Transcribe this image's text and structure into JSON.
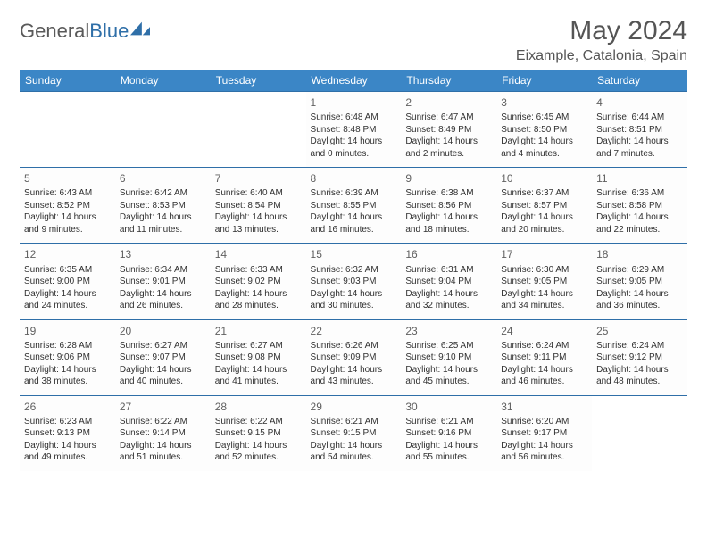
{
  "logo": {
    "text1": "General",
    "text2": "Blue"
  },
  "title": "May 2024",
  "location": "Eixample, Catalonia, Spain",
  "daysOfWeek": [
    "Sunday",
    "Monday",
    "Tuesday",
    "Wednesday",
    "Thursday",
    "Friday",
    "Saturday"
  ],
  "colors": {
    "header_bg": "#3b86c6",
    "border": "#2f6fa8",
    "text": "#303030",
    "title_text": "#555555"
  },
  "weeks": [
    [
      null,
      null,
      null,
      {
        "n": "1",
        "sr": "6:48 AM",
        "ss": "8:48 PM",
        "dl": "14 hours and 0 minutes."
      },
      {
        "n": "2",
        "sr": "6:47 AM",
        "ss": "8:49 PM",
        "dl": "14 hours and 2 minutes."
      },
      {
        "n": "3",
        "sr": "6:45 AM",
        "ss": "8:50 PM",
        "dl": "14 hours and 4 minutes."
      },
      {
        "n": "4",
        "sr": "6:44 AM",
        "ss": "8:51 PM",
        "dl": "14 hours and 7 minutes."
      }
    ],
    [
      {
        "n": "5",
        "sr": "6:43 AM",
        "ss": "8:52 PM",
        "dl": "14 hours and 9 minutes."
      },
      {
        "n": "6",
        "sr": "6:42 AM",
        "ss": "8:53 PM",
        "dl": "14 hours and 11 minutes."
      },
      {
        "n": "7",
        "sr": "6:40 AM",
        "ss": "8:54 PM",
        "dl": "14 hours and 13 minutes."
      },
      {
        "n": "8",
        "sr": "6:39 AM",
        "ss": "8:55 PM",
        "dl": "14 hours and 16 minutes."
      },
      {
        "n": "9",
        "sr": "6:38 AM",
        "ss": "8:56 PM",
        "dl": "14 hours and 18 minutes."
      },
      {
        "n": "10",
        "sr": "6:37 AM",
        "ss": "8:57 PM",
        "dl": "14 hours and 20 minutes."
      },
      {
        "n": "11",
        "sr": "6:36 AM",
        "ss": "8:58 PM",
        "dl": "14 hours and 22 minutes."
      }
    ],
    [
      {
        "n": "12",
        "sr": "6:35 AM",
        "ss": "9:00 PM",
        "dl": "14 hours and 24 minutes."
      },
      {
        "n": "13",
        "sr": "6:34 AM",
        "ss": "9:01 PM",
        "dl": "14 hours and 26 minutes."
      },
      {
        "n": "14",
        "sr": "6:33 AM",
        "ss": "9:02 PM",
        "dl": "14 hours and 28 minutes."
      },
      {
        "n": "15",
        "sr": "6:32 AM",
        "ss": "9:03 PM",
        "dl": "14 hours and 30 minutes."
      },
      {
        "n": "16",
        "sr": "6:31 AM",
        "ss": "9:04 PM",
        "dl": "14 hours and 32 minutes."
      },
      {
        "n": "17",
        "sr": "6:30 AM",
        "ss": "9:05 PM",
        "dl": "14 hours and 34 minutes."
      },
      {
        "n": "18",
        "sr": "6:29 AM",
        "ss": "9:05 PM",
        "dl": "14 hours and 36 minutes."
      }
    ],
    [
      {
        "n": "19",
        "sr": "6:28 AM",
        "ss": "9:06 PM",
        "dl": "14 hours and 38 minutes."
      },
      {
        "n": "20",
        "sr": "6:27 AM",
        "ss": "9:07 PM",
        "dl": "14 hours and 40 minutes."
      },
      {
        "n": "21",
        "sr": "6:27 AM",
        "ss": "9:08 PM",
        "dl": "14 hours and 41 minutes."
      },
      {
        "n": "22",
        "sr": "6:26 AM",
        "ss": "9:09 PM",
        "dl": "14 hours and 43 minutes."
      },
      {
        "n": "23",
        "sr": "6:25 AM",
        "ss": "9:10 PM",
        "dl": "14 hours and 45 minutes."
      },
      {
        "n": "24",
        "sr": "6:24 AM",
        "ss": "9:11 PM",
        "dl": "14 hours and 46 minutes."
      },
      {
        "n": "25",
        "sr": "6:24 AM",
        "ss": "9:12 PM",
        "dl": "14 hours and 48 minutes."
      }
    ],
    [
      {
        "n": "26",
        "sr": "6:23 AM",
        "ss": "9:13 PM",
        "dl": "14 hours and 49 minutes."
      },
      {
        "n": "27",
        "sr": "6:22 AM",
        "ss": "9:14 PM",
        "dl": "14 hours and 51 minutes."
      },
      {
        "n": "28",
        "sr": "6:22 AM",
        "ss": "9:15 PM",
        "dl": "14 hours and 52 minutes."
      },
      {
        "n": "29",
        "sr": "6:21 AM",
        "ss": "9:15 PM",
        "dl": "14 hours and 54 minutes."
      },
      {
        "n": "30",
        "sr": "6:21 AM",
        "ss": "9:16 PM",
        "dl": "14 hours and 55 minutes."
      },
      {
        "n": "31",
        "sr": "6:20 AM",
        "ss": "9:17 PM",
        "dl": "14 hours and 56 minutes."
      },
      null
    ]
  ],
  "labels": {
    "sunrise": "Sunrise:",
    "sunset": "Sunset:",
    "daylight": "Daylight:"
  }
}
